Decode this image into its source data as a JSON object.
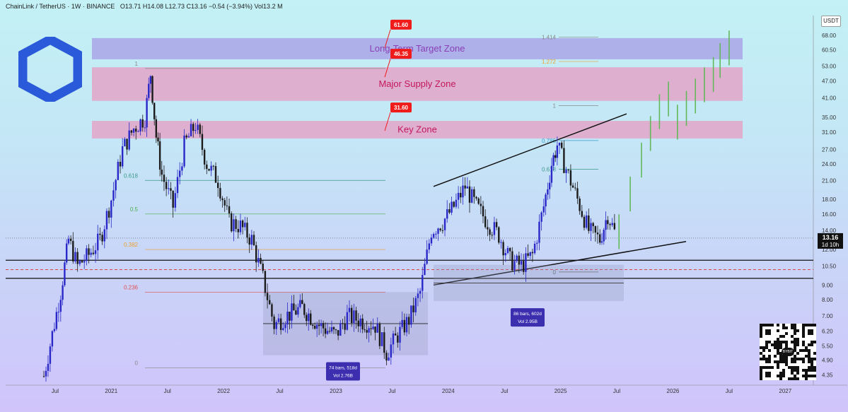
{
  "header": {
    "symbol": "ChainLink / TetherUS · 1W · BINANCE",
    "ohlc": "O13.71  H14.08  L12.73  C13.16  −0.54 (−3.94%)  Vol13.2 M"
  },
  "currency_badge": "USDT",
  "colors": {
    "candle_up": "#2a28c8",
    "candle_down": "#1b1b1b",
    "projection": "#63b85a",
    "target_zone": "#a9a4e6",
    "supply_zone": "#e3a4c8",
    "callout": "#f01b1b",
    "current_price_tag": "#111111"
  },
  "chart_data": {
    "type": "candlestick",
    "y_scale": "log",
    "ylim": [
      4.0,
      72.0
    ],
    "y_ticks": [
      "68.00",
      "60.50",
      "53.00",
      "47.00",
      "41.00",
      "35.00",
      "31.00",
      "27.00",
      "24.00",
      "21.00",
      "18.00",
      "16.00",
      "14.00",
      "12.00",
      "10.50",
      "9.00",
      "8.00",
      "7.00",
      "6.20",
      "5.50",
      "4.90",
      "4.35"
    ],
    "x_ticks": [
      {
        "label": "Jul",
        "t": 2020.5
      },
      {
        "label": "2021",
        "t": 2021.0
      },
      {
        "label": "Jul",
        "t": 2021.5
      },
      {
        "label": "2022",
        "t": 2022.0
      },
      {
        "label": "Jul",
        "t": 2022.5
      },
      {
        "label": "2023",
        "t": 2023.0
      },
      {
        "label": "Jul",
        "t": 2023.5
      },
      {
        "label": "2024",
        "t": 2024.0
      },
      {
        "label": "Jul",
        "t": 2024.5
      },
      {
        "label": "2025",
        "t": 2025.0
      },
      {
        "label": "Jul",
        "t": 2025.5
      },
      {
        "label": "2026",
        "t": 2026.0
      },
      {
        "label": "Jul",
        "t": 2026.5
      },
      {
        "label": "2027",
        "t": 2027.0
      }
    ],
    "xlim": [
      2020.06,
      2027.25
    ],
    "current_price": {
      "value": 13.16,
      "label": "13.16",
      "sublabel": "1d 10h"
    },
    "zones": [
      {
        "name": "Long-Term Target Zone",
        "low": 56.0,
        "high": 66.5,
        "callout": "61.60",
        "color": "#a9a4e6"
      },
      {
        "name": "Major Supply Zone",
        "low": 40.0,
        "high": 52.5,
        "callout": "46.35",
        "color": "#e3a4c8"
      },
      {
        "name": "Key Zone",
        "low": 29.5,
        "high": 34.0,
        "callout": "31.60",
        "color": "#e3a4c8"
      }
    ],
    "fib_levels_2021": [
      {
        "label": "1",
        "price": 52.0
      },
      {
        "label": "0.618",
        "price": 21.0
      },
      {
        "label": "0.5",
        "price": 16.0
      },
      {
        "label": "0.382",
        "price": 12.0
      },
      {
        "label": "0.236",
        "price": 8.5
      },
      {
        "label": "0",
        "price": 4.6
      }
    ],
    "fib_levels_2024": [
      {
        "label": "1.414",
        "price": 67.0
      },
      {
        "label": "1.272",
        "price": 55.0
      },
      {
        "label": "1",
        "price": 38.5
      },
      {
        "label": "0.786",
        "price": 29.0
      },
      {
        "label": "0.618",
        "price": 23.0
      },
      {
        "label": "0",
        "price": 10.0
      }
    ],
    "range_boxes": [
      {
        "bars_label": "74 bars, 518d",
        "vol_label": "Vol 2.76B"
      },
      {
        "bars_label": "86 bars, 602d",
        "vol_label": "Vol 2.95B"
      }
    ],
    "series": [
      {
        "name": "LINK/USDT",
        "ohlc_weekly_close_path": [
          [
            2020.4,
            4.3
          ],
          [
            2020.55,
            8.5
          ],
          [
            2020.62,
            13.0
          ],
          [
            2020.7,
            10.5
          ],
          [
            2020.8,
            11.5
          ],
          [
            2020.9,
            13.0
          ],
          [
            2021.0,
            18.0
          ],
          [
            2021.1,
            27.0
          ],
          [
            2021.2,
            32.0
          ],
          [
            2021.3,
            35.0
          ],
          [
            2021.35,
            50.0
          ],
          [
            2021.4,
            30.0
          ],
          [
            2021.45,
            22.0
          ],
          [
            2021.55,
            17.0
          ],
          [
            2021.65,
            28.0
          ],
          [
            2021.75,
            33.0
          ],
          [
            2021.85,
            24.0
          ],
          [
            2021.95,
            21.0
          ],
          [
            2022.05,
            15.0
          ],
          [
            2022.15,
            14.5
          ],
          [
            2022.25,
            13.0
          ],
          [
            2022.35,
            9.5
          ],
          [
            2022.45,
            6.5
          ],
          [
            2022.55,
            7.0
          ],
          [
            2022.7,
            7.5
          ],
          [
            2022.85,
            6.5
          ],
          [
            2023.0,
            6.0
          ],
          [
            2023.1,
            7.0
          ],
          [
            2023.2,
            6.8
          ],
          [
            2023.35,
            6.5
          ],
          [
            2023.45,
            5.2
          ],
          [
            2023.55,
            6.0
          ],
          [
            2023.65,
            6.8
          ],
          [
            2023.75,
            8.5
          ],
          [
            2023.85,
            14.0
          ],
          [
            2023.95,
            15.0
          ],
          [
            2024.05,
            17.0
          ],
          [
            2024.15,
            20.0
          ],
          [
            2024.25,
            17.0
          ],
          [
            2024.35,
            15.0
          ],
          [
            2024.45,
            13.5
          ],
          [
            2024.55,
            11.0
          ],
          [
            2024.65,
            10.5
          ],
          [
            2024.75,
            11.5
          ],
          [
            2024.85,
            17.0
          ],
          [
            2024.92,
            24.0
          ],
          [
            2024.97,
            28.0
          ],
          [
            2025.05,
            23.0
          ],
          [
            2025.15,
            18.0
          ],
          [
            2025.25,
            14.0
          ],
          [
            2025.35,
            13.0
          ],
          [
            2025.42,
            16.0
          ],
          [
            2025.5,
            13.16
          ]
        ]
      },
      {
        "name": "projection",
        "values": [
          [
            2025.52,
            14.0
          ],
          [
            2025.62,
            19.0
          ],
          [
            2025.72,
            25.0
          ],
          [
            2025.8,
            31.0
          ],
          [
            2025.88,
            37.0
          ],
          [
            2025.96,
            41.0
          ],
          [
            2026.04,
            34.0
          ],
          [
            2026.12,
            38.0
          ],
          [
            2026.2,
            42.0
          ],
          [
            2026.28,
            46.0
          ],
          [
            2026.36,
            50.0
          ],
          [
            2026.42,
            56.0
          ],
          [
            2026.5,
            62.0
          ]
        ]
      }
    ]
  },
  "qr_brand": "BYBIT"
}
